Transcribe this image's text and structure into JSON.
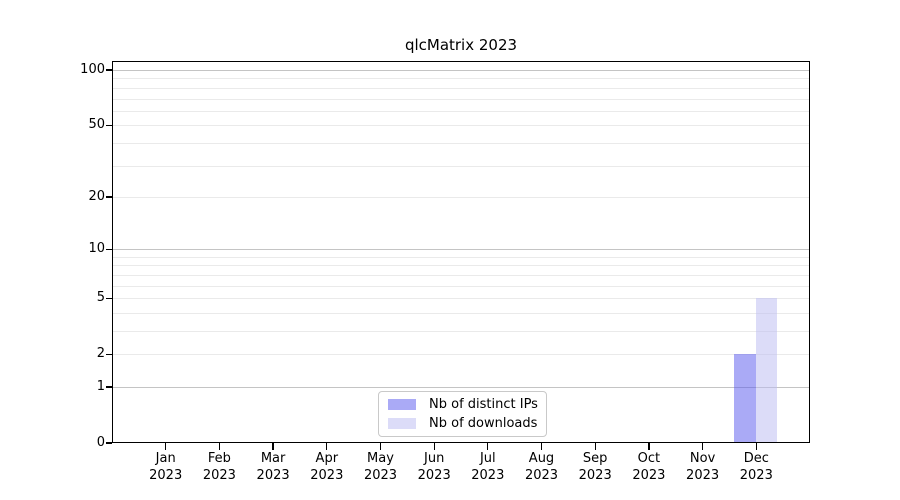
{
  "figure": {
    "background": "#ffffff"
  },
  "chart_data": {
    "type": "bar",
    "title": "qlcMatrix 2023",
    "categories": [
      "Jan 2023",
      "Feb 2023",
      "Mar 2023",
      "Apr 2023",
      "May 2023",
      "Jun 2023",
      "Jul 2023",
      "Aug 2023",
      "Sep 2023",
      "Oct 2023",
      "Nov 2023",
      "Dec 2023"
    ],
    "series": [
      {
        "name": "Nb of distinct IPs",
        "fill": "rgba(85,85,238,0.5)",
        "legend_color": "#aaaaf6",
        "values": [
          0,
          0,
          0,
          0,
          0,
          0,
          0,
          0,
          0,
          0,
          0,
          2
        ]
      },
      {
        "name": "Nb of downloads",
        "fill": "rgba(185,185,242,0.5)",
        "legend_color": "#dcdcf8",
        "values": [
          0,
          0,
          0,
          0,
          0,
          0,
          0,
          0,
          0,
          0,
          0,
          5
        ]
      }
    ],
    "yscale": "log1p",
    "ylim": [
      0,
      100
    ],
    "yticks": [
      0,
      1,
      2,
      5,
      10,
      20,
      50,
      100
    ],
    "major_gridlines": [
      1,
      10,
      100
    ],
    "minor_gridlines": [
      2,
      3,
      4,
      5,
      6,
      7,
      8,
      9,
      20,
      30,
      40,
      50,
      60,
      70,
      80,
      90
    ],
    "grid": "horizontal",
    "legend_position": "lower center"
  },
  "colors": {
    "major_grid": "#c4c4c4",
    "minor_grid": "#eaeaea",
    "axis": "#000000",
    "text": "#000000"
  }
}
